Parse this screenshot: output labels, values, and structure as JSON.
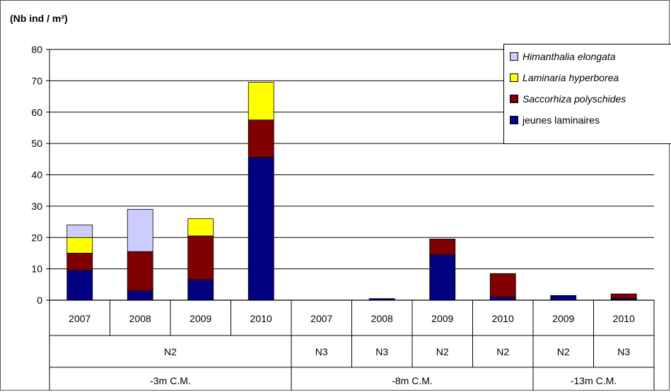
{
  "chart_data": {
    "type": "bar",
    "stacked": true,
    "ylabel": "(Nb ind / m²)",
    "ylim": [
      0,
      80
    ],
    "yticks": [
      0,
      10,
      20,
      30,
      40,
      50,
      60,
      70,
      80
    ],
    "grid": true,
    "legend_position": "top-right",
    "categories": [
      {
        "year": "2007",
        "level": "N2",
        "depth": "-3m C.M."
      },
      {
        "year": "2008",
        "level": "N2",
        "depth": "-3m C.M."
      },
      {
        "year": "2009",
        "level": "N2",
        "depth": "-3m C.M."
      },
      {
        "year": "2010",
        "level": "N2",
        "depth": "-3m C.M."
      },
      {
        "year": "2007",
        "level": "N3",
        "depth": "-8m C.M."
      },
      {
        "year": "2008",
        "level": "N3",
        "depth": "-8m C.M."
      },
      {
        "year": "2009",
        "level": "N2",
        "depth": "-8m C.M."
      },
      {
        "year": "2010",
        "level": "N2",
        "depth": "-8m C.M."
      },
      {
        "year": "2009",
        "level": "N2",
        "depth": "-13m C.M."
      },
      {
        "year": "2010",
        "level": "N3",
        "depth": "-13m C.M."
      }
    ],
    "level_groups": [
      {
        "label": "N2",
        "span": 4
      },
      {
        "label": "N3",
        "span": 1
      },
      {
        "label": "N3",
        "span": 1
      },
      {
        "label": "N2",
        "span": 1
      },
      {
        "label": "N2",
        "span": 1
      },
      {
        "label": "N2",
        "span": 1
      },
      {
        "label": "N3",
        "span": 1
      }
    ],
    "depth_groups": [
      {
        "label": "-3m C.M.",
        "span": 4
      },
      {
        "label": "-8m C.M.",
        "span": 4
      },
      {
        "label": "-13m C.M.",
        "span": 2
      }
    ],
    "series": [
      {
        "name": "jeunes laminaires",
        "color": "#000080",
        "italic": false,
        "values": [
          9.5,
          3,
          6.5,
          45.5,
          0,
          0.5,
          14.5,
          1,
          1.5,
          0.5
        ]
      },
      {
        "name": "Saccorhiza polyschides",
        "color": "#800000",
        "italic": true,
        "values": [
          5.5,
          12.5,
          14,
          12,
          0,
          0,
          5,
          7.5,
          0,
          1.5
        ]
      },
      {
        "name": "Laminaria hyperborea",
        "color": "#FFFF00",
        "italic": true,
        "values": [
          5,
          0,
          5.5,
          12,
          0,
          0,
          0,
          0,
          0,
          0
        ]
      },
      {
        "name": "Himanthalia elongata",
        "color": "#CCCCFF",
        "italic": true,
        "values": [
          4,
          13.5,
          0,
          0,
          0,
          0,
          0,
          0,
          0,
          0
        ]
      }
    ]
  }
}
